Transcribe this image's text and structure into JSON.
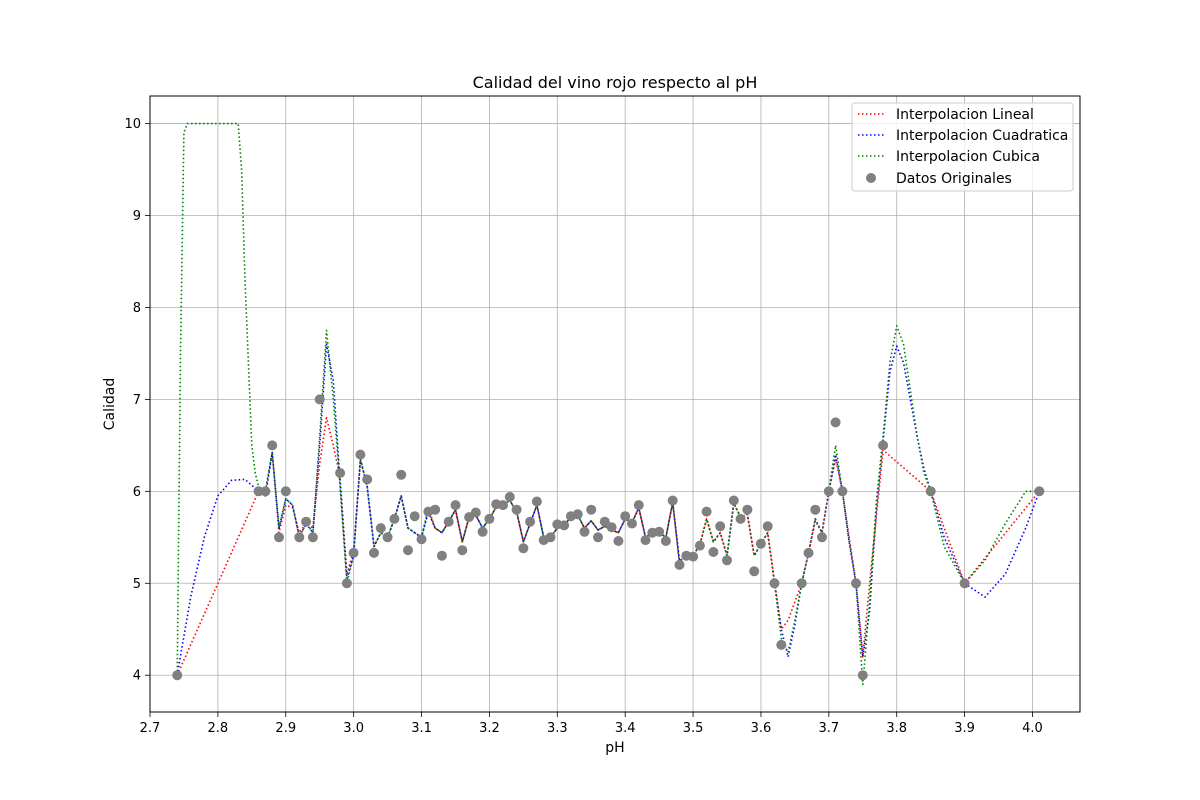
{
  "chart_data": {
    "type": "line",
    "title": "Calidad del vino rojo respecto al pH",
    "xlabel": "pH",
    "ylabel": "Calidad",
    "xlim": [
      2.7,
      4.07
    ],
    "ylim": [
      3.6,
      10.3
    ],
    "xticks": [
      2.7,
      2.8,
      2.9,
      3.0,
      3.1,
      3.2,
      3.3,
      3.4,
      3.5,
      3.6,
      3.7,
      3.8,
      3.9,
      4.0
    ],
    "xtick_labels": [
      "2.7",
      "2.8",
      "2.9",
      "3.0",
      "3.1",
      "3.2",
      "3.3",
      "3.4",
      "3.5",
      "3.6",
      "3.7",
      "3.8",
      "3.9",
      "4.0"
    ],
    "yticks": [
      4,
      5,
      6,
      7,
      8,
      9,
      10
    ],
    "ytick_labels": [
      "4",
      "5",
      "6",
      "7",
      "8",
      "9",
      "10"
    ],
    "grid": true,
    "legend_position": "top-right",
    "points": {
      "name": "Datos Originales",
      "color": "#808080",
      "x": [
        2.74,
        2.86,
        2.87,
        2.88,
        2.89,
        2.9,
        2.92,
        2.93,
        2.94,
        2.95,
        2.98,
        2.99,
        3.0,
        3.01,
        3.02,
        3.03,
        3.04,
        3.05,
        3.06,
        3.07,
        3.08,
        3.09,
        3.1,
        3.11,
        3.12,
        3.13,
        3.14,
        3.15,
        3.16,
        3.17,
        3.18,
        3.19,
        3.2,
        3.21,
        3.22,
        3.23,
        3.24,
        3.25,
        3.26,
        3.27,
        3.28,
        3.29,
        3.3,
        3.31,
        3.32,
        3.33,
        3.34,
        3.35,
        3.36,
        3.37,
        3.38,
        3.39,
        3.4,
        3.41,
        3.42,
        3.43,
        3.44,
        3.45,
        3.46,
        3.47,
        3.48,
        3.49,
        3.5,
        3.51,
        3.52,
        3.53,
        3.54,
        3.55,
        3.56,
        3.57,
        3.58,
        3.59,
        3.6,
        3.61,
        3.62,
        3.63,
        3.66,
        3.67,
        3.68,
        3.69,
        3.7,
        3.71,
        3.72,
        3.74,
        3.75,
        3.78,
        3.85,
        3.9,
        4.01
      ],
      "y": [
        4.0,
        6.0,
        6.0,
        6.5,
        5.5,
        6.0,
        5.5,
        5.67,
        5.5,
        7.0,
        6.2,
        5.0,
        5.33,
        6.4,
        6.13,
        5.33,
        5.6,
        5.5,
        5.7,
        6.18,
        5.36,
        5.73,
        5.48,
        5.78,
        5.8,
        5.3,
        5.67,
        5.85,
        5.36,
        5.72,
        5.77,
        5.56,
        5.7,
        5.86,
        5.85,
        5.94,
        5.8,
        5.38,
        5.67,
        5.89,
        5.47,
        5.5,
        5.64,
        5.63,
        5.73,
        5.75,
        5.56,
        5.8,
        5.5,
        5.67,
        5.61,
        5.46,
        5.73,
        5.65,
        5.85,
        5.47,
        5.55,
        5.56,
        5.46,
        5.9,
        5.2,
        5.3,
        5.29,
        5.41,
        5.78,
        5.34,
        5.62,
        5.25,
        5.9,
        5.7,
        5.8,
        5.13,
        5.43,
        5.62,
        5.0,
        4.33,
        5.0,
        5.33,
        5.8,
        5.5,
        6.0,
        6.75,
        6.0,
        5.0,
        4.0,
        6.5,
        6.0,
        5.0,
        6.0
      ]
    },
    "series": [
      {
        "name": "Interpolacion Lineal",
        "color": "#ff0000",
        "x": [
          2.74,
          2.86,
          2.87,
          2.88,
          2.89,
          2.9,
          2.91,
          2.92,
          2.93,
          2.94,
          2.95,
          2.96,
          2.97,
          2.98,
          2.99,
          3.0,
          3.01,
          3.02,
          3.03,
          3.04,
          3.05,
          3.06,
          3.07,
          3.08,
          3.09,
          3.1,
          3.11,
          3.12,
          3.13,
          3.14,
          3.15,
          3.16,
          3.17,
          3.18,
          3.19,
          3.2,
          3.21,
          3.22,
          3.23,
          3.24,
          3.25,
          3.26,
          3.27,
          3.28,
          3.29,
          3.3,
          3.31,
          3.32,
          3.33,
          3.34,
          3.35,
          3.36,
          3.37,
          3.38,
          3.39,
          3.4,
          3.41,
          3.42,
          3.43,
          3.44,
          3.45,
          3.46,
          3.47,
          3.48,
          3.49,
          3.5,
          3.51,
          3.52,
          3.53,
          3.54,
          3.55,
          3.56,
          3.57,
          3.58,
          3.59,
          3.6,
          3.61,
          3.62,
          3.63,
          3.64,
          3.65,
          3.66,
          3.67,
          3.68,
          3.69,
          3.7,
          3.71,
          3.72,
          3.73,
          3.74,
          3.75,
          3.76,
          3.78,
          3.85,
          3.9,
          4.01
        ],
        "y": [
          4.0,
          6.0,
          6.0,
          6.43,
          5.55,
          5.85,
          5.82,
          5.55,
          5.65,
          5.6,
          6.3,
          6.8,
          6.5,
          6.15,
          5.1,
          5.35,
          6.35,
          6.05,
          5.4,
          5.55,
          5.5,
          5.7,
          5.95,
          5.6,
          5.55,
          5.5,
          5.78,
          5.6,
          5.55,
          5.67,
          5.8,
          5.45,
          5.72,
          5.74,
          5.6,
          5.7,
          5.83,
          5.85,
          5.9,
          5.78,
          5.45,
          5.65,
          5.85,
          5.5,
          5.5,
          5.6,
          5.63,
          5.72,
          5.74,
          5.6,
          5.68,
          5.58,
          5.62,
          5.58,
          5.55,
          5.7,
          5.66,
          5.82,
          5.5,
          5.55,
          5.55,
          5.5,
          5.88,
          5.24,
          5.3,
          5.3,
          5.42,
          5.7,
          5.45,
          5.55,
          5.3,
          5.87,
          5.72,
          5.75,
          5.3,
          5.43,
          5.55,
          5.02,
          4.5,
          4.6,
          4.8,
          5.0,
          5.33,
          5.68,
          5.55,
          6.0,
          6.35,
          6.0,
          5.5,
          5.0,
          4.2,
          5.0,
          6.45,
          6.0,
          5.0,
          6.0
        ]
      },
      {
        "name": "Interpolacion Cuadratica",
        "color": "#0000ff",
        "x": [
          2.74,
          2.76,
          2.78,
          2.8,
          2.82,
          2.84,
          2.86,
          2.87,
          2.88,
          2.89,
          2.9,
          2.91,
          2.92,
          2.93,
          2.94,
          2.95,
          2.96,
          2.97,
          2.98,
          2.99,
          3.0,
          3.01,
          3.02,
          3.03,
          3.04,
          3.05,
          3.06,
          3.07,
          3.08,
          3.09,
          3.1,
          3.11,
          3.12,
          3.13,
          3.14,
          3.15,
          3.16,
          3.17,
          3.18,
          3.19,
          3.2,
          3.21,
          3.22,
          3.23,
          3.24,
          3.25,
          3.26,
          3.27,
          3.28,
          3.29,
          3.3,
          3.31,
          3.32,
          3.33,
          3.34,
          3.35,
          3.36,
          3.37,
          3.38,
          3.39,
          3.4,
          3.41,
          3.42,
          3.43,
          3.44,
          3.45,
          3.46,
          3.47,
          3.48,
          3.49,
          3.5,
          3.51,
          3.52,
          3.53,
          3.54,
          3.55,
          3.56,
          3.57,
          3.58,
          3.59,
          3.6,
          3.61,
          3.62,
          3.63,
          3.64,
          3.65,
          3.66,
          3.67,
          3.68,
          3.69,
          3.7,
          3.71,
          3.72,
          3.73,
          3.74,
          3.75,
          3.76,
          3.77,
          3.78,
          3.79,
          3.8,
          3.81,
          3.82,
          3.83,
          3.84,
          3.85,
          3.87,
          3.9,
          3.93,
          3.96,
          3.99,
          4.01
        ],
        "y": [
          4.0,
          4.85,
          5.5,
          5.95,
          6.12,
          6.13,
          6.0,
          5.95,
          6.42,
          5.6,
          5.92,
          5.85,
          5.5,
          5.65,
          5.55,
          6.5,
          7.6,
          7.2,
          6.1,
          5.05,
          5.3,
          6.35,
          6.05,
          5.4,
          5.55,
          5.5,
          5.7,
          5.95,
          5.6,
          5.55,
          5.5,
          5.78,
          5.6,
          5.55,
          5.67,
          5.8,
          5.45,
          5.72,
          5.74,
          5.6,
          5.7,
          5.83,
          5.85,
          5.9,
          5.78,
          5.45,
          5.65,
          5.85,
          5.5,
          5.5,
          5.6,
          5.63,
          5.72,
          5.74,
          5.6,
          5.68,
          5.58,
          5.62,
          5.58,
          5.55,
          5.7,
          5.66,
          5.82,
          5.5,
          5.55,
          5.55,
          5.5,
          5.88,
          5.24,
          5.3,
          5.3,
          5.42,
          5.7,
          5.45,
          5.55,
          5.3,
          5.87,
          5.72,
          5.75,
          5.3,
          5.43,
          5.55,
          5.0,
          4.5,
          4.2,
          4.55,
          5.0,
          5.33,
          5.7,
          5.55,
          6.0,
          6.4,
          6.0,
          5.45,
          5.0,
          4.2,
          4.7,
          5.8,
          6.55,
          7.3,
          7.58,
          7.4,
          7.0,
          6.6,
          6.25,
          6.0,
          5.5,
          5.0,
          4.85,
          5.1,
          5.6,
          6.0
        ]
      },
      {
        "name": "Interpolacion Cubica",
        "color": "#008000",
        "x": [
          2.74,
          2.745,
          2.75,
          2.755,
          2.77,
          2.8,
          2.83,
          2.835,
          2.84,
          2.845,
          2.85,
          2.855,
          2.86,
          2.87,
          2.88,
          2.89,
          2.9,
          2.91,
          2.92,
          2.93,
          2.94,
          2.95,
          2.96,
          2.97,
          2.98,
          2.99,
          3.0,
          3.01,
          3.02,
          3.03,
          3.04,
          3.05,
          3.06,
          3.07,
          3.08,
          3.09,
          3.1,
          3.11,
          3.12,
          3.13,
          3.14,
          3.15,
          3.16,
          3.17,
          3.18,
          3.19,
          3.2,
          3.21,
          3.22,
          3.23,
          3.24,
          3.25,
          3.26,
          3.27,
          3.28,
          3.29,
          3.3,
          3.31,
          3.32,
          3.33,
          3.34,
          3.35,
          3.36,
          3.37,
          3.38,
          3.39,
          3.4,
          3.41,
          3.42,
          3.43,
          3.44,
          3.45,
          3.46,
          3.47,
          3.48,
          3.49,
          3.5,
          3.51,
          3.52,
          3.53,
          3.54,
          3.55,
          3.56,
          3.57,
          3.58,
          3.59,
          3.6,
          3.61,
          3.62,
          3.63,
          3.64,
          3.65,
          3.66,
          3.67,
          3.68,
          3.69,
          3.7,
          3.71,
          3.72,
          3.73,
          3.74,
          3.75,
          3.76,
          3.77,
          3.78,
          3.79,
          3.8,
          3.81,
          3.82,
          3.83,
          3.84,
          3.85,
          3.87,
          3.9,
          3.93,
          3.96,
          3.99,
          4.01
        ],
        "y": [
          4.0,
          7.5,
          9.9,
          10.0,
          10.0,
          10.0,
          10.0,
          9.5,
          8.3,
          7.4,
          6.5,
          6.2,
          6.05,
          6.0,
          6.42,
          5.6,
          5.92,
          5.85,
          5.5,
          5.65,
          5.55,
          6.6,
          7.75,
          7.0,
          6.05,
          5.0,
          5.3,
          6.35,
          6.05,
          5.4,
          5.55,
          5.5,
          5.7,
          5.95,
          5.6,
          5.55,
          5.5,
          5.82,
          5.6,
          5.55,
          5.67,
          5.8,
          5.45,
          5.72,
          5.74,
          5.6,
          5.7,
          5.83,
          5.85,
          5.9,
          5.78,
          5.45,
          5.65,
          5.85,
          5.5,
          5.5,
          5.6,
          5.63,
          5.72,
          5.74,
          5.6,
          5.68,
          5.58,
          5.62,
          5.58,
          5.55,
          5.7,
          5.66,
          5.82,
          5.5,
          5.55,
          5.55,
          5.5,
          5.88,
          5.2,
          5.3,
          5.3,
          5.42,
          5.7,
          5.45,
          5.55,
          5.3,
          5.87,
          5.72,
          5.75,
          5.3,
          5.43,
          5.55,
          5.0,
          4.4,
          4.25,
          4.6,
          5.0,
          5.33,
          5.7,
          5.55,
          6.0,
          6.5,
          6.0,
          5.45,
          5.0,
          3.9,
          4.8,
          5.9,
          6.6,
          7.4,
          7.8,
          7.6,
          7.1,
          6.6,
          6.2,
          6.0,
          5.4,
          5.0,
          5.25,
          5.65,
          6.0,
          6.0
        ]
      }
    ]
  }
}
